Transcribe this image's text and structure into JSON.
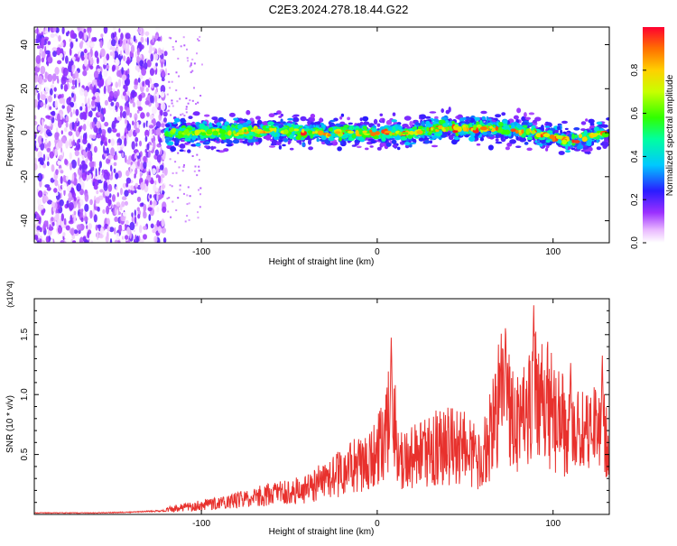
{
  "title": "C2E3.2024.278.18.44.G22",
  "chart_data": [
    {
      "type": "heatmap",
      "xlabel": "Height of straight line (km)",
      "ylabel": "Frequency (Hz)",
      "xlim": [
        -195,
        132
      ],
      "ylim": [
        -50,
        48
      ],
      "xticks": [
        -100,
        0,
        100
      ],
      "yticks": [
        -40,
        -20,
        0,
        20,
        40
      ],
      "colorbar": {
        "label": "Normalized spectral amplitude",
        "range": [
          0,
          1
        ],
        "ticks": [
          0.0,
          0.2,
          0.4,
          0.6,
          0.8
        ]
      },
      "regions": [
        {
          "x": [
            -195,
            -120
          ],
          "y": [
            -50,
            48
          ],
          "amplitude": [
            0.0,
            0.2
          ],
          "pattern": "scattered noise"
        },
        {
          "x": [
            -120,
            132
          ],
          "y": [
            -8,
            6
          ],
          "amplitude": [
            0.1,
            1.0
          ],
          "pattern": "band centred near 0 Hz"
        }
      ],
      "band_center_hz": [
        {
          "x": -120,
          "y": 0
        },
        {
          "x": -90,
          "y": 0
        },
        {
          "x": -60,
          "y": 1
        },
        {
          "x": -30,
          "y": 0
        },
        {
          "x": 0,
          "y": 0
        },
        {
          "x": 20,
          "y": 0
        },
        {
          "x": 35,
          "y": 2
        },
        {
          "x": 60,
          "y": 2
        },
        {
          "x": 90,
          "y": 0
        },
        {
          "x": 110,
          "y": -4
        },
        {
          "x": 132,
          "y": 0
        }
      ]
    },
    {
      "type": "line",
      "xlabel": "Height of straight line (km)",
      "ylabel": "SNR (10 * v/v)",
      "multiplier_label": "(x10^4)",
      "xlim": [
        -195,
        132
      ],
      "ylim": [
        0,
        1.8
      ],
      "xticks": [
        -100,
        0,
        100
      ],
      "yticks": [
        0.5,
        1.0,
        1.5
      ],
      "ytick_labels": [
        "0.5",
        "1.0",
        "1.5"
      ],
      "series": [
        {
          "color": "#e8312d",
          "x": [
            -195,
            -180,
            -160,
            -140,
            -120,
            -100,
            -80,
            -60,
            -40,
            -20,
            0,
            8,
            15,
            30,
            45,
            60,
            70,
            80,
            90,
            100,
            110,
            120,
            132
          ],
          "y": [
            0.02,
            0.02,
            0.02,
            0.03,
            0.05,
            0.1,
            0.15,
            0.22,
            0.28,
            0.45,
            0.65,
            1.1,
            0.55,
            0.7,
            0.75,
            0.6,
            1.25,
            1.0,
            1.4,
            1.1,
            0.85,
            0.9,
            0.8
          ],
          "peaks": [
            {
              "x": 8,
              "y": 1.5
            },
            {
              "x": 73,
              "y": 1.65
            },
            {
              "x": 89,
              "y": 1.77
            },
            {
              "x": 110,
              "y": 1.3
            },
            {
              "x": 128,
              "y": 1.35
            }
          ]
        }
      ]
    }
  ]
}
